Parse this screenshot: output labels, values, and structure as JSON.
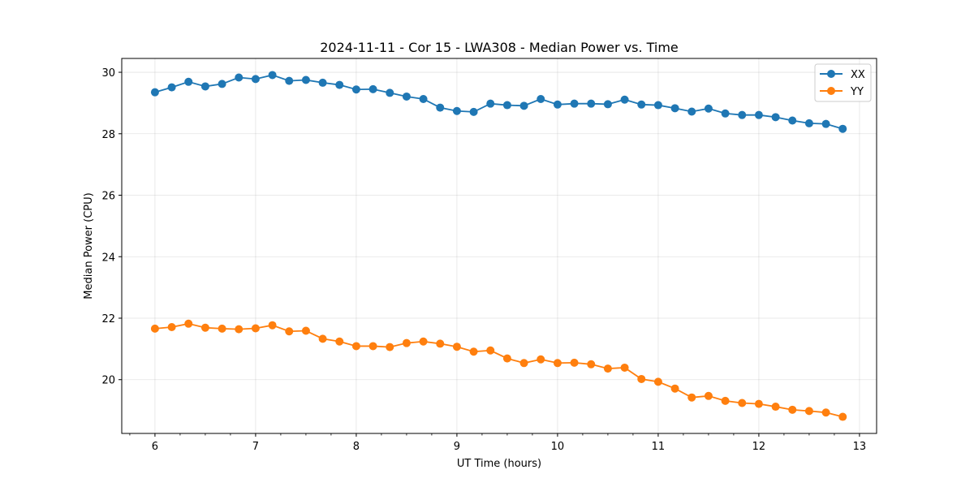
{
  "chart_data": {
    "type": "line",
    "title": "2024-11-11 - Cor 15 - LWA308 - Median Power vs. Time",
    "xlabel": "UT Time (hours)",
    "ylabel": "Median Power (CPU)",
    "xlim": [
      5.67,
      13.17
    ],
    "ylim": [
      18.25,
      30.45
    ],
    "xticks": [
      6,
      7,
      8,
      9,
      10,
      11,
      12,
      13
    ],
    "yticks": [
      20,
      22,
      24,
      26,
      28,
      30
    ],
    "grid": true,
    "legend_position": "top-right",
    "x": [
      6.0,
      6.1667,
      6.3333,
      6.5,
      6.6667,
      6.8333,
      7.0,
      7.1667,
      7.3333,
      7.5,
      7.6667,
      7.8333,
      8.0,
      8.1667,
      8.3333,
      8.5,
      8.6667,
      8.8333,
      9.0,
      9.1667,
      9.3333,
      9.5,
      9.6667,
      9.8333,
      10.0,
      10.1667,
      10.3333,
      10.5,
      10.6667,
      10.8333,
      11.0,
      11.1667,
      11.3333,
      11.5,
      11.6667,
      11.8333,
      12.0,
      12.1667,
      12.3333,
      12.5,
      12.6667,
      12.8333
    ],
    "series": [
      {
        "name": "XX",
        "color": "#1f77b4",
        "values": [
          29.35,
          29.51,
          29.69,
          29.54,
          29.62,
          29.83,
          29.78,
          29.91,
          29.72,
          29.75,
          29.66,
          29.59,
          29.44,
          29.45,
          29.33,
          29.21,
          29.13,
          28.85,
          28.74,
          28.71,
          28.98,
          28.93,
          28.91,
          29.13,
          28.95,
          28.98,
          28.98,
          28.96,
          29.11,
          28.95,
          28.93,
          28.83,
          28.72,
          28.82,
          28.66,
          28.61,
          28.61,
          28.54,
          28.43,
          28.34,
          28.32,
          28.16
        ]
      },
      {
        "name": "YY",
        "color": "#ff7f0e",
        "values": [
          21.66,
          21.71,
          21.82,
          21.69,
          21.66,
          21.64,
          21.67,
          21.77,
          21.57,
          21.59,
          21.33,
          21.24,
          21.09,
          21.09,
          21.06,
          21.19,
          21.24,
          21.17,
          21.07,
          20.91,
          20.95,
          20.69,
          20.54,
          20.66,
          20.54,
          20.55,
          20.5,
          20.36,
          20.39,
          20.02,
          19.93,
          19.71,
          19.42,
          19.47,
          19.31,
          19.24,
          19.21,
          19.12,
          19.02,
          18.98,
          18.93,
          18.79
        ]
      }
    ]
  }
}
